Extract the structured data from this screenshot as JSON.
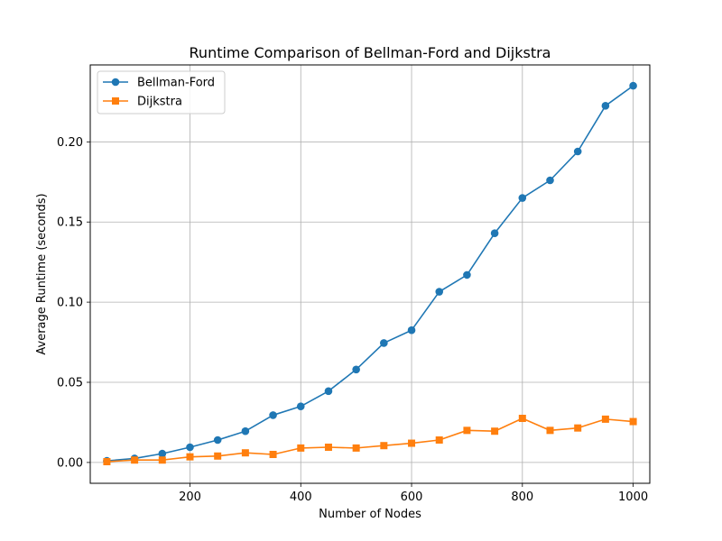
{
  "chart_data": {
    "type": "line",
    "title": "Runtime Comparison of Bellman-Ford and Dijkstra",
    "xlabel": "Number of Nodes",
    "ylabel": "Average Runtime (seconds)",
    "xlim": [
      20,
      1030
    ],
    "ylim": [
      -0.013,
      0.248
    ],
    "x_ticks": [
      200,
      400,
      600,
      800,
      1000
    ],
    "x_tick_labels": [
      "200",
      "400",
      "600",
      "800",
      "1000"
    ],
    "y_ticks": [
      0.0,
      0.05,
      0.1,
      0.15,
      0.2
    ],
    "y_tick_labels": [
      "0.00",
      "0.05",
      "0.10",
      "0.15",
      "0.20"
    ],
    "grid": true,
    "legend_position": "top-left",
    "x": [
      50,
      100,
      150,
      200,
      250,
      300,
      350,
      400,
      450,
      500,
      550,
      600,
      650,
      700,
      750,
      800,
      850,
      900,
      950,
      1000
    ],
    "series": [
      {
        "name": "Bellman-Ford",
        "color": "#1f77b4",
        "marker": "circle",
        "values": [
          0.001,
          0.0025,
          0.0055,
          0.0095,
          0.014,
          0.0195,
          0.0295,
          0.035,
          0.0445,
          0.058,
          0.0745,
          0.0825,
          0.1065,
          0.117,
          0.143,
          0.165,
          0.176,
          0.194,
          0.2225,
          0.235
        ]
      },
      {
        "name": "Dijkstra",
        "color": "#ff7f0e",
        "marker": "square",
        "values": [
          0.0005,
          0.0015,
          0.0015,
          0.0035,
          0.004,
          0.006,
          0.005,
          0.009,
          0.0095,
          0.009,
          0.0105,
          0.012,
          0.014,
          0.02,
          0.0195,
          0.0275,
          0.02,
          0.0215,
          0.027,
          0.0255
        ]
      }
    ]
  }
}
